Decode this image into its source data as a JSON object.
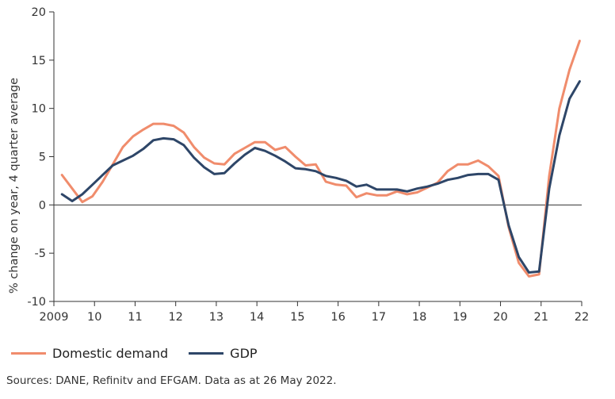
{
  "chart_data": {
    "type": "line",
    "ylabel": "% change on year, 4 quarter average",
    "ylim": [
      -10,
      20
    ],
    "yticks": [
      -10,
      -5,
      0,
      5,
      10,
      15,
      20
    ],
    "xlim": [
      2009,
      2022
    ],
    "xticks": [
      {
        "value": 2009,
        "label": "2009"
      },
      {
        "value": 2010,
        "label": "10"
      },
      {
        "value": 2011,
        "label": "11"
      },
      {
        "value": 2012,
        "label": "12"
      },
      {
        "value": 2013,
        "label": "13"
      },
      {
        "value": 2014,
        "label": "14"
      },
      {
        "value": 2015,
        "label": "15"
      },
      {
        "value": 2016,
        "label": "16"
      },
      {
        "value": 2017,
        "label": "17"
      },
      {
        "value": 2018,
        "label": "18"
      },
      {
        "value": 2019,
        "label": "19"
      },
      {
        "value": 2020,
        "label": "20"
      },
      {
        "value": 2021,
        "label": "21"
      },
      {
        "value": 2022,
        "label": "22"
      }
    ],
    "x": [
      2009.2,
      2009.45,
      2009.7,
      2009.95,
      2010.2,
      2010.45,
      2010.7,
      2010.95,
      2011.2,
      2011.45,
      2011.7,
      2011.95,
      2012.2,
      2012.45,
      2012.7,
      2012.95,
      2013.2,
      2013.45,
      2013.7,
      2013.95,
      2014.2,
      2014.45,
      2014.7,
      2014.95,
      2015.2,
      2015.45,
      2015.7,
      2015.95,
      2016.2,
      2016.45,
      2016.7,
      2016.95,
      2017.2,
      2017.45,
      2017.7,
      2017.95,
      2018.2,
      2018.45,
      2018.7,
      2018.95,
      2019.2,
      2019.45,
      2019.7,
      2019.95,
      2020.2,
      2020.45,
      2020.7,
      2020.95,
      2021.2,
      2021.45,
      2021.7,
      2021.95
    ],
    "series": [
      {
        "name": "Domestic demand",
        "color": "#f08c6c",
        "values": [
          3.1,
          1.7,
          0.3,
          0.9,
          2.4,
          4.2,
          6.0,
          7.1,
          7.8,
          8.4,
          8.4,
          8.2,
          7.5,
          6.0,
          4.9,
          4.3,
          4.2,
          5.3,
          5.9,
          6.5,
          6.5,
          5.7,
          6.0,
          5.0,
          4.1,
          4.2,
          2.4,
          2.1,
          2.0,
          0.8,
          1.2,
          1.0,
          1.0,
          1.4,
          1.1,
          1.3,
          1.8,
          2.3,
          3.5,
          4.2,
          4.2,
          4.6,
          4.0,
          3.0,
          -2.3,
          -6.0,
          -7.4,
          -7.2,
          3.0,
          10.0,
          14.0,
          17.0
        ]
      },
      {
        "name": "GDP",
        "color": "#2e4668",
        "values": [
          1.1,
          0.4,
          1.1,
          2.1,
          3.1,
          4.1,
          4.6,
          5.1,
          5.8,
          6.7,
          6.9,
          6.8,
          6.2,
          4.9,
          3.9,
          3.2,
          3.3,
          4.3,
          5.2,
          5.9,
          5.6,
          5.1,
          4.5,
          3.8,
          3.7,
          3.5,
          3.0,
          2.8,
          2.5,
          1.9,
          2.1,
          1.6,
          1.6,
          1.6,
          1.4,
          1.7,
          1.9,
          2.2,
          2.6,
          2.8,
          3.1,
          3.2,
          3.2,
          2.6,
          -2.1,
          -5.4,
          -7.0,
          -6.9,
          1.7,
          7.2,
          11.0,
          12.8
        ]
      }
    ]
  },
  "source": "Sources: DANE, Refinitv and EFGAM. Data as at 26 May 2022."
}
